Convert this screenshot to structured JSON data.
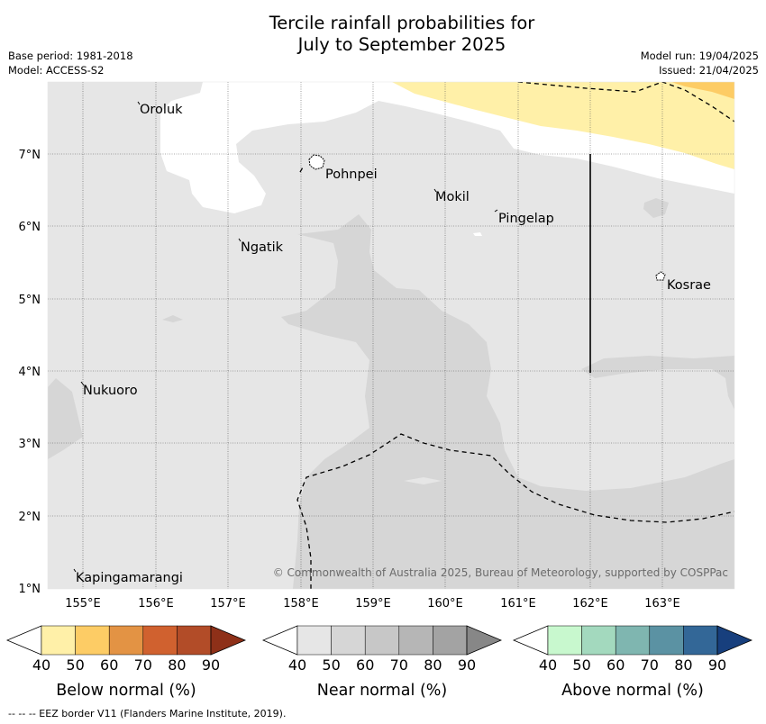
{
  "title_line1": "Tercile rainfall probabilities for",
  "title_line2": "July to September 2025",
  "meta": {
    "base_period": "Base period: 1981-2018",
    "model": "Model: ACCESS-S2",
    "model_run": "Model run: 19/04/2025",
    "issued": "Issued: 21/04/2025"
  },
  "places": {
    "oroluk": "Oroluk",
    "pohnpei": "Pohnpei",
    "mokil": "Mokil",
    "pingelap": "Pingelap",
    "ngatik": "Ngatik",
    "kosrae": "Kosrae",
    "nukuoro": "Nukuoro",
    "kapingamarangi": "Kapingamarangi"
  },
  "axes": {
    "lat": [
      "7°N",
      "6°N",
      "5°N",
      "4°N",
      "3°N",
      "2°N",
      "1°N"
    ],
    "lon": [
      "155°E",
      "156°E",
      "157°E",
      "158°E",
      "159°E",
      "160°E",
      "161°E",
      "162°E",
      "163°E"
    ]
  },
  "copyright": "© Commonwealth of Australia 2025, Bureau of Meteorology, supported by COSPPac",
  "colorbars": {
    "ticks": [
      "40",
      "50",
      "60",
      "70",
      "80",
      "90"
    ],
    "below": {
      "label": "Below normal (%)",
      "colors": [
        "#fff0a8",
        "#fdcc65",
        "#e39344",
        "#d0612f",
        "#b24c28",
        "#8e3018"
      ]
    },
    "near": {
      "label": "Near normal (%)",
      "colors": [
        "#e6e6e6",
        "#d6d6d6",
        "#c7c7c7",
        "#b6b6b6",
        "#a3a3a3",
        "#878787"
      ]
    },
    "above": {
      "label": "Above normal (%)",
      "colors": [
        "#c8f8ce",
        "#a3d9be",
        "#7fb6b0",
        "#5b92a3",
        "#336797",
        "#173f7d"
      ]
    }
  },
  "footer": "--  --  -- EEZ border V11 (Flanders Marine Institute, 2019).",
  "colors": {
    "near_40_50": "#e6e6e6",
    "near_50_60": "#d6d6d6",
    "below_40_50": "#fff0a8",
    "below_50_60": "#fdcc65"
  }
}
